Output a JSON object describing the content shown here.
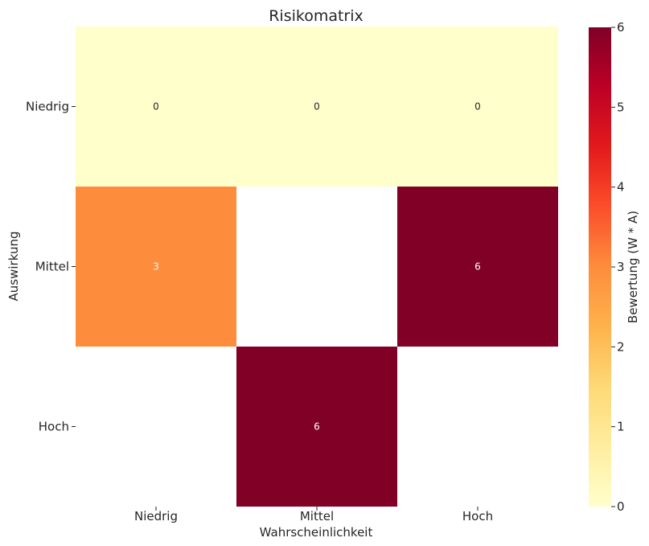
{
  "chart_data": {
    "type": "heatmap",
    "title": "Risikomatrix",
    "xlabel": "Wahrscheinlichkeit",
    "ylabel": "Auswirkung",
    "x_categories": [
      "Niedrig",
      "Mittel",
      "Hoch"
    ],
    "y_categories": [
      "Niedrig",
      "Mittel",
      "Hoch"
    ],
    "values": [
      [
        0,
        0,
        0
      ],
      [
        3,
        null,
        6
      ],
      [
        null,
        6,
        null
      ]
    ],
    "colorbar": {
      "label": "Bewertung (W * A)",
      "range": [
        0,
        6
      ],
      "ticks": [
        "0",
        "1",
        "2",
        "3",
        "4",
        "5",
        "6"
      ],
      "colormap": "YlOrRd"
    }
  }
}
